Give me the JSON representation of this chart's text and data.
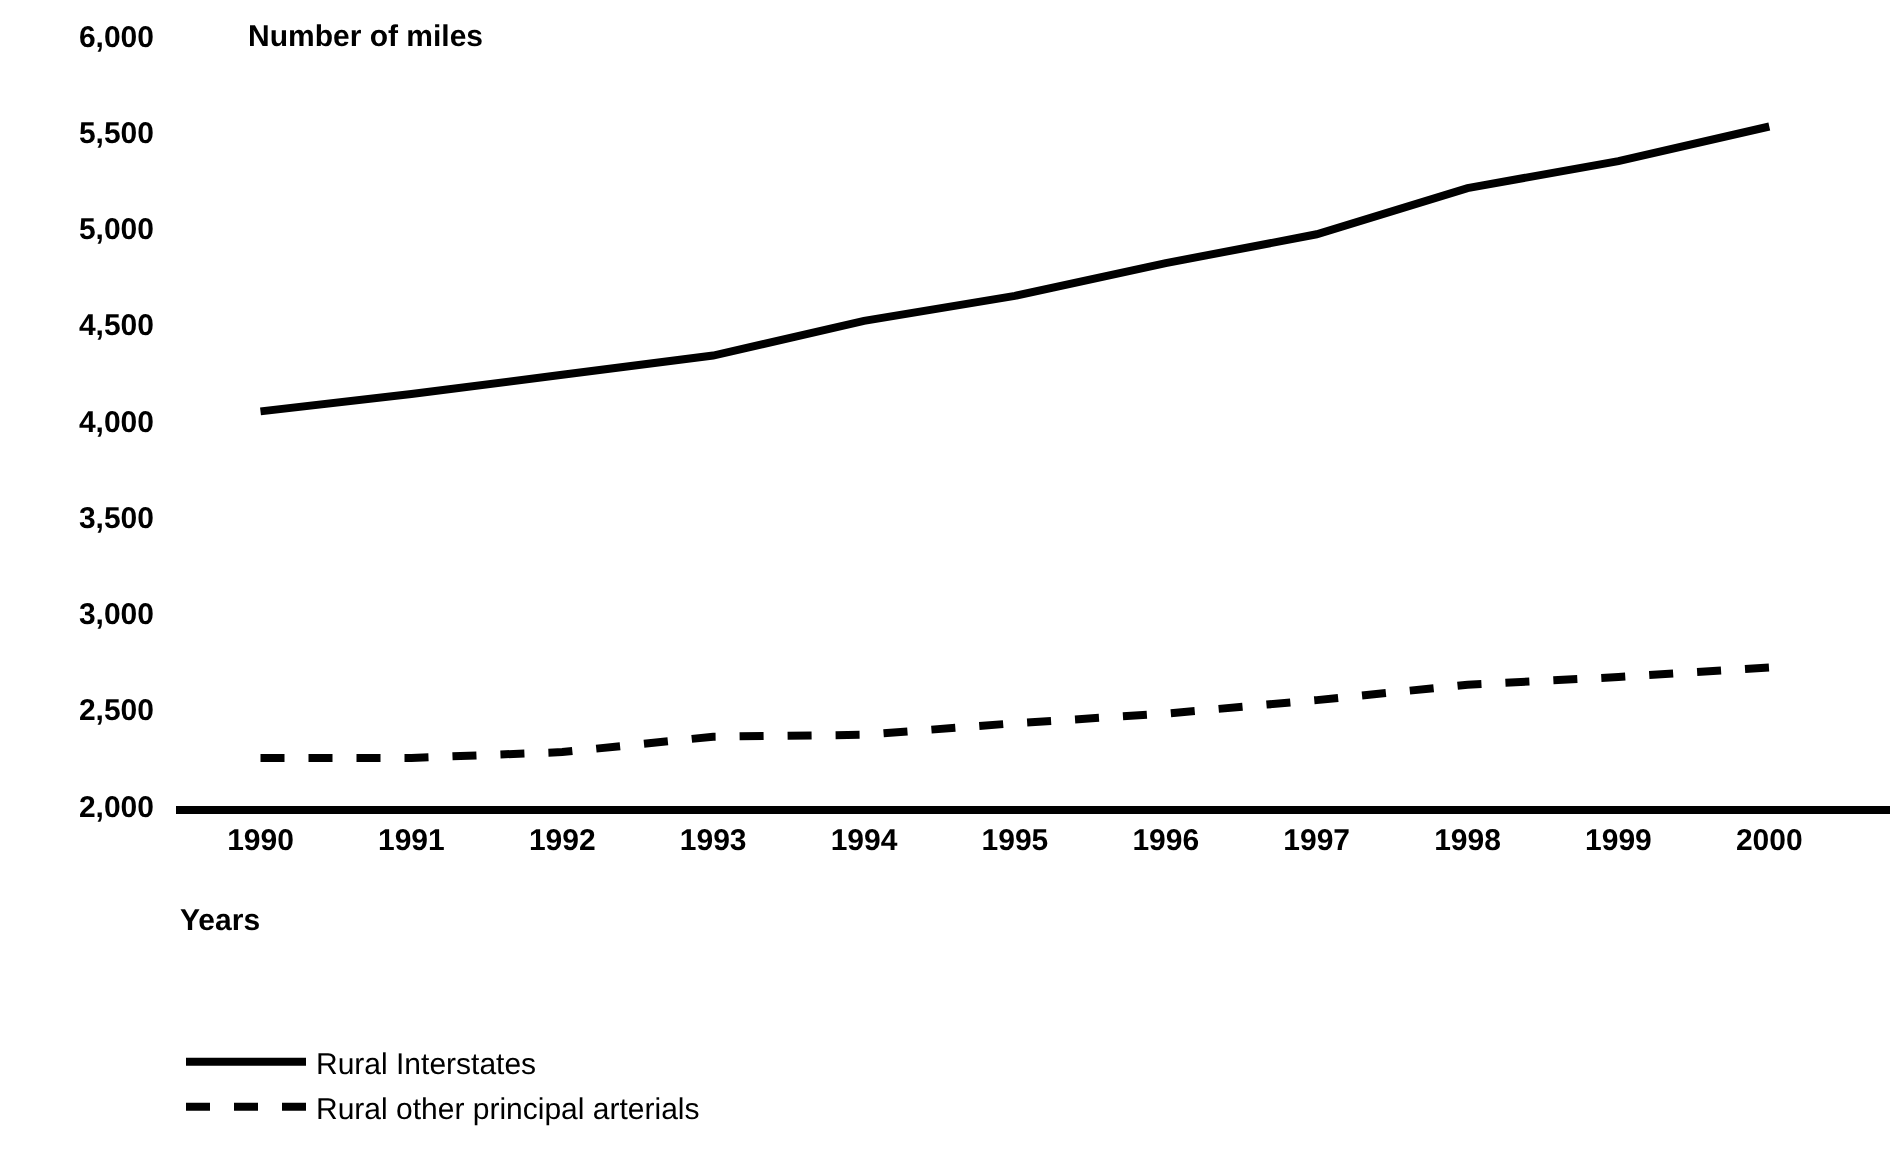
{
  "chart_data": {
    "type": "line",
    "ylabel": "Number of miles",
    "xlabel": "Years",
    "categories": [
      "1990",
      "1991",
      "1992",
      "1993",
      "1994",
      "1995",
      "1996",
      "1997",
      "1998",
      "1999",
      "2000"
    ],
    "series": [
      {
        "name": "Rural Interstates",
        "color": "#000000",
        "line_style": "solid",
        "values": [
          4050,
          4140,
          4240,
          4340,
          4520,
          4650,
          4820,
          4970,
          5210,
          5350,
          5530
        ]
      },
      {
        "name": "Rural other principal arterials",
        "color": "#000000",
        "line_style": "dashed",
        "values": [
          2250,
          2250,
          2280,
          2360,
          2370,
          2430,
          2480,
          2550,
          2630,
          2670,
          2720
        ]
      }
    ],
    "ylim": [
      2000,
      6000
    ],
    "yticks": [
      {
        "value": 2000,
        "label": "2,000"
      },
      {
        "value": 2500,
        "label": "2,500"
      },
      {
        "value": 3000,
        "label": "3,000"
      },
      {
        "value": 3500,
        "label": "3,500"
      },
      {
        "value": 4000,
        "label": "4,000"
      },
      {
        "value": 4500,
        "label": "4,500"
      },
      {
        "value": 5000,
        "label": "5,000"
      },
      {
        "value": 5500,
        "label": "5,500"
      },
      {
        "value": 6000,
        "label": "6,000"
      }
    ],
    "legend": "bottom left",
    "marker": "none"
  }
}
